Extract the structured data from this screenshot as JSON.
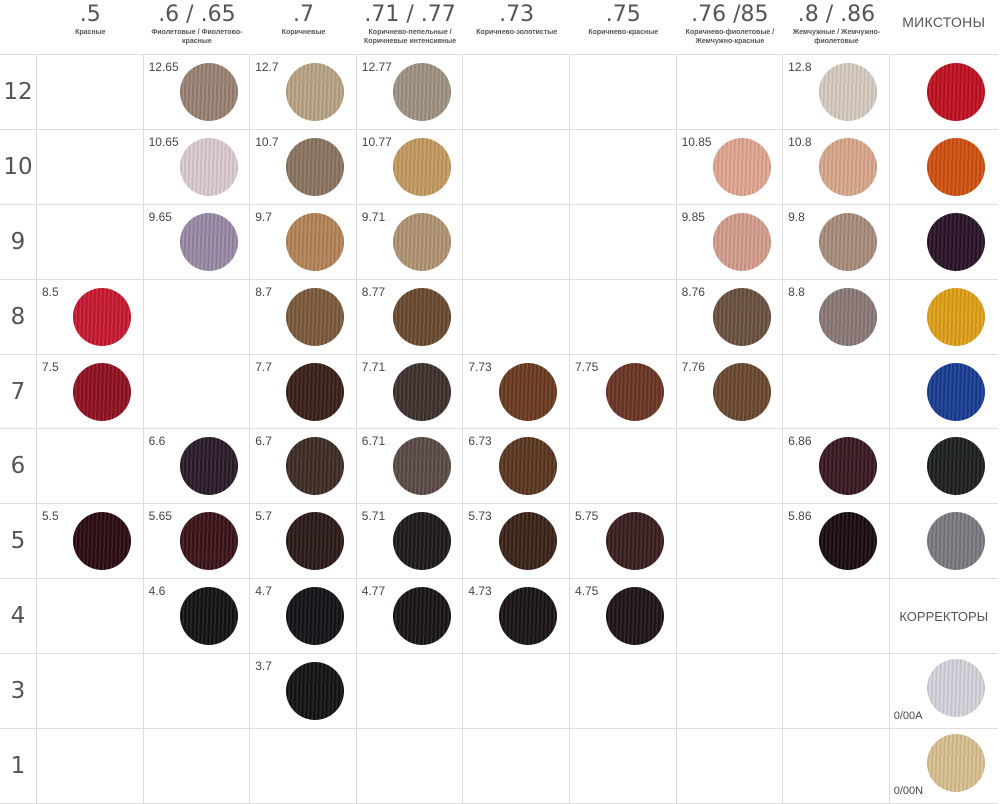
{
  "header": {
    "columns": [
      {
        "code": ".5",
        "subtitle": "Красные"
      },
      {
        "code": ".6 / .65",
        "subtitle": "Фиолетовые / Фиолетово-красные"
      },
      {
        "code": ".7",
        "subtitle": "Коричневые"
      },
      {
        "code": ".71 / .77",
        "subtitle": "Коричнево-пепельные / Коричневые интенсивные"
      },
      {
        "code": ".73",
        "subtitle": "Коричнево-золотистые"
      },
      {
        "code": ".75",
        "subtitle": "Коричнево-красные"
      },
      {
        "code": ".76 /85",
        "subtitle": "Коричнево-фиолетовые / Жемчужно-красные"
      },
      {
        "code": ".8 / .86",
        "subtitle": "Жемчужные / Жемчужно-фиолетовые"
      }
    ],
    "mixtones_title": "МИКСТОНЫ"
  },
  "rows": [
    {
      "level": "12",
      "cells": [
        null,
        {
          "code": "12.65",
          "color": "#9a8274"
        },
        {
          "code": "12.7",
          "color": "#b9a384"
        },
        {
          "code": "12.77",
          "color": "#a09282"
        },
        null,
        null,
        null,
        {
          "code": "12.8",
          "color": "#d7cbc0"
        }
      ],
      "mixtone": "#c01020"
    },
    {
      "level": "10",
      "cells": [
        null,
        {
          "code": "10.65",
          "color": "#dccbd0"
        },
        {
          "code": "10.7",
          "color": "#8a7460"
        },
        {
          "code": "10.77",
          "color": "#c49a60"
        },
        null,
        null,
        {
          "code": "10.85",
          "color": "#e0a690"
        },
        {
          "code": "10.8",
          "color": "#d8a88a"
        }
      ],
      "mixtone": "#d05010"
    },
    {
      "level": "9",
      "cells": [
        null,
        {
          "code": "9.65",
          "color": "#9a8aa6"
        },
        {
          "code": "9.7",
          "color": "#b48458"
        },
        {
          "code": "9.71",
          "color": "#b09472"
        },
        null,
        null,
        {
          "code": "9.85",
          "color": "#d49c8c"
        },
        {
          "code": "9.8",
          "color": "#a88c7c"
        }
      ],
      "mixtone": "#2a1428"
    },
    {
      "level": "8",
      "cells": [
        {
          "code": "8.5",
          "color": "#c81830"
        },
        null,
        {
          "code": "8.7",
          "color": "#7c5a3c"
        },
        {
          "code": "8.77",
          "color": "#6a4a30"
        },
        null,
        null,
        {
          "code": "8.76",
          "color": "#6a5040"
        },
        {
          "code": "8.8",
          "color": "#8a7876"
        }
      ],
      "mixtone": "#e0a018"
    },
    {
      "level": "7",
      "cells": [
        {
          "code": "7.5",
          "color": "#901020"
        },
        null,
        {
          "code": "7.7",
          "color": "#3a2018"
        },
        {
          "code": "7.71",
          "color": "#3e302c"
        },
        {
          "code": "7.73",
          "color": "#6a3a20"
        },
        {
          "code": "7.75",
          "color": "#6a3424"
        },
        {
          "code": "7.76",
          "color": "#6a4830"
        },
        null
      ],
      "mixtone": "#183c90"
    },
    {
      "level": "6",
      "cells": [
        null,
        {
          "code": "6.6",
          "color": "#2a1a28"
        },
        {
          "code": "6.7",
          "color": "#3e2c26"
        },
        {
          "code": "6.71",
          "color": "#5a4a44"
        },
        {
          "code": "6.73",
          "color": "#5a3620"
        },
        null,
        null,
        {
          "code": "6.86",
          "color": "#3a1820"
        }
      ],
      "mixtone": "#1c201e"
    },
    {
      "level": "5",
      "cells": [
        {
          "code": "5.5",
          "color": "#2a0a10"
        },
        {
          "code": "5.65",
          "color": "#3a1418"
        },
        {
          "code": "5.7",
          "color": "#2a1a18"
        },
        {
          "code": "5.71",
          "color": "#1e1a1a"
        },
        {
          "code": "5.73",
          "color": "#3a2418"
        },
        {
          "code": "5.75",
          "color": "#3a1e1e"
        },
        null,
        {
          "code": "5.86",
          "color": "#1a0c10"
        }
      ],
      "mixtone": "#7a7a80"
    },
    {
      "level": "4",
      "cells": [
        null,
        {
          "code": "4.6",
          "color": "#121214"
        },
        {
          "code": "4.7",
          "color": "#141216"
        },
        {
          "code": "4.77",
          "color": "#181414"
        },
        {
          "code": "4.73",
          "color": "#1a1414"
        },
        {
          "code": "4.75",
          "color": "#1e1416"
        },
        null,
        null
      ],
      "mixtone": null
    },
    {
      "level": "3",
      "cells": [
        null,
        null,
        {
          "code": "3.7",
          "color": "#121212"
        },
        null,
        null,
        null,
        null,
        null
      ],
      "mixtone": null
    },
    {
      "level": "1",
      "cells": [
        null,
        null,
        null,
        null,
        null,
        null,
        null,
        null
      ],
      "mixtone": null
    }
  ],
  "correctors": {
    "title": "КОРРЕКТОРЫ",
    "items": [
      {
        "code": "0/00A",
        "color": "#d4d4dc"
      },
      {
        "code": "0/00N",
        "color": "#d8c090"
      }
    ]
  }
}
